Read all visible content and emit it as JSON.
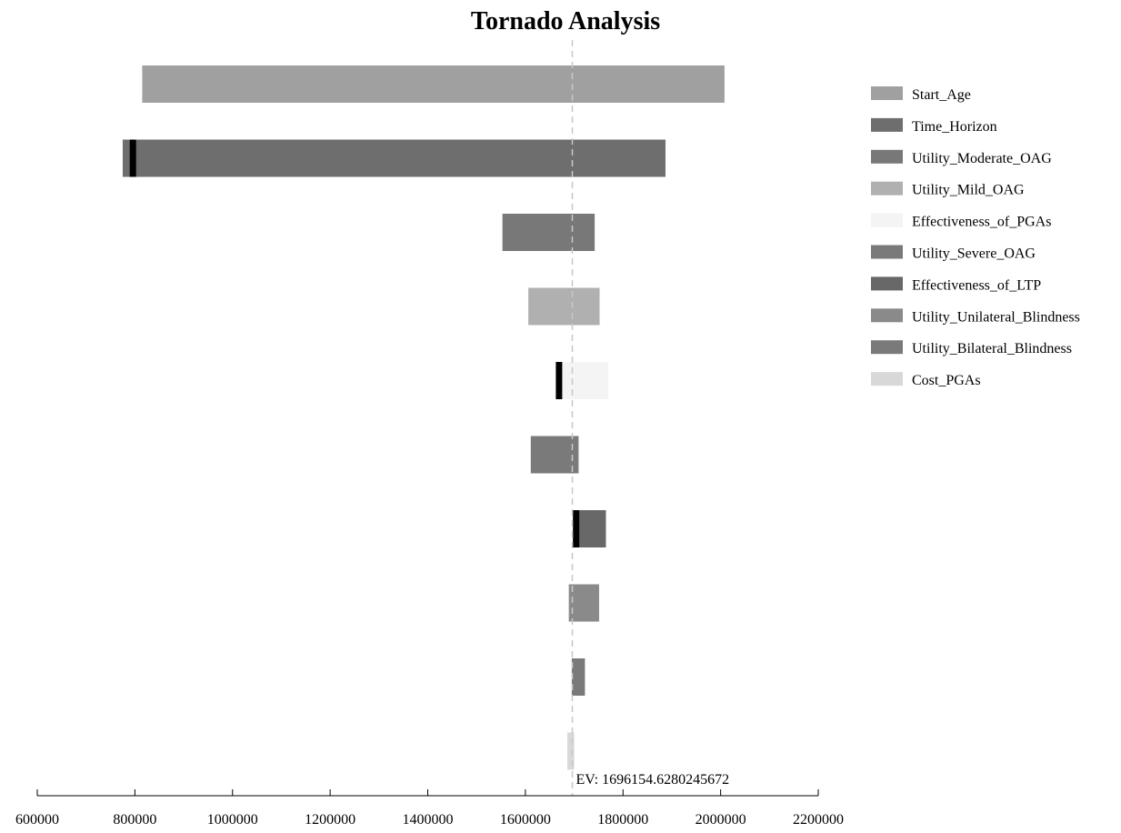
{
  "chart_data": {
    "type": "bar",
    "orientation": "horizontal",
    "title": "Tornado Analysis",
    "xlabel": "",
    "ylabel": "",
    "xlim": [
      600000,
      2200000
    ],
    "x_ticks": [
      "600000",
      "800000",
      "1000000",
      "1200000",
      "1400000",
      "1600000",
      "1800000",
      "2000000",
      "2200000"
    ],
    "x_tick_values": [
      600000,
      800000,
      1000000,
      1200000,
      1400000,
      1600000,
      1800000,
      2000000,
      2200000
    ],
    "ev": 1696154.6280245672,
    "ev_label": "EV: 1696154.6280245672",
    "grid": false,
    "legend_position": "right",
    "series": [
      {
        "name": "Start_Age",
        "low": 815000,
        "high": 2008000,
        "color": "#a0a0a0"
      },
      {
        "name": "Time_Horizon",
        "low": 775000,
        "high": 1887000,
        "color": "#6e6e6e",
        "marker": 795000
      },
      {
        "name": "Utility_Moderate_OAG",
        "low": 1553000,
        "high": 1742000,
        "color": "#787878"
      },
      {
        "name": "Utility_Mild_OAG",
        "low": 1606000,
        "high": 1752000,
        "color": "#b0b0b0"
      },
      {
        "name": "Effectiveness_of_PGAs",
        "low": 1665000,
        "high": 1770000,
        "color": "#f4f4f4",
        "marker": 1668000
      },
      {
        "name": "Utility_Severe_OAG",
        "low": 1611000,
        "high": 1709000,
        "color": "#7a7a7a"
      },
      {
        "name": "Effectiveness_of_LTP",
        "low": 1700000,
        "high": 1765000,
        "color": "#686868",
        "marker": 1703000
      },
      {
        "name": "Utility_Unilateral_Blindness",
        "low": 1689000,
        "high": 1751000,
        "color": "#8a8a8a"
      },
      {
        "name": "Utility_Bilateral_Blindness",
        "low": 1695000,
        "high": 1722000,
        "color": "#7a7a7a"
      },
      {
        "name": "Cost_PGAs",
        "low": 1686000,
        "high": 1700000,
        "color": "#d8d8d8"
      }
    ]
  }
}
